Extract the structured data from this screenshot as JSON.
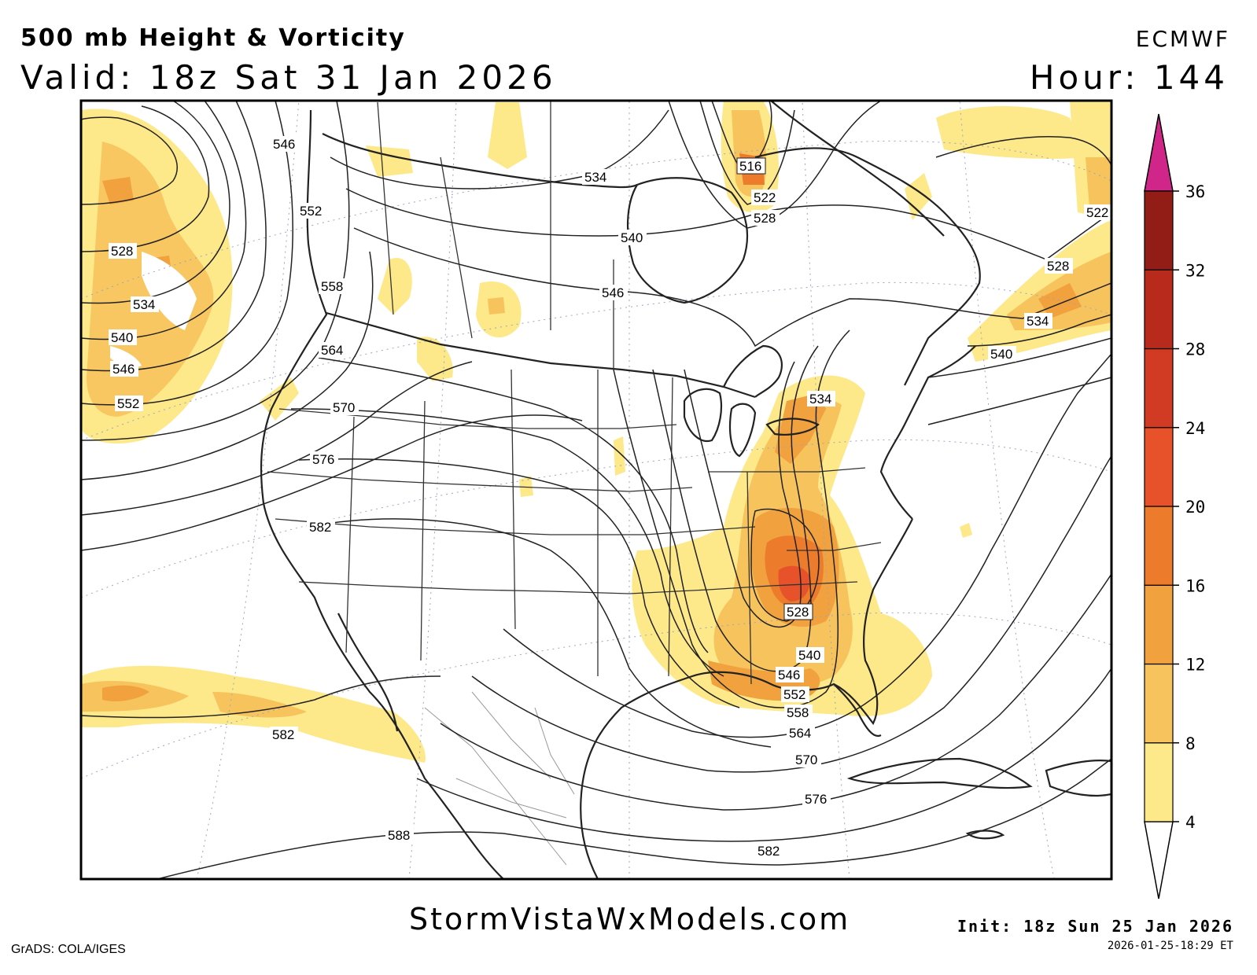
{
  "header": {
    "title_line1": "500 mb Height & Vorticity",
    "title_line2": "Valid: 18z Sat 31 Jan 2026",
    "model": "ECMWF",
    "hour": "Hour: 144"
  },
  "footer": {
    "grads": "GrADS: COLA/IGES",
    "site": "StormVistaWxModels.com",
    "init": "Init: 18z Sun 25 Jan 2026",
    "stamp": "2026-01-25-18:29 ET"
  },
  "colorbar": {
    "levels": [
      "4",
      "8",
      "12",
      "16",
      "20",
      "24",
      "28",
      "32",
      "36"
    ],
    "colors": [
      "#fde88a",
      "#f7c35c",
      "#f1a13e",
      "#ec7b2c",
      "#e7522a",
      "#d13a23",
      "#b82a1c",
      "#921d16",
      "#d0268a"
    ]
  },
  "contour_labels": [
    "516",
    "522",
    "528",
    "534",
    "540",
    "546",
    "552",
    "558",
    "564",
    "570",
    "576",
    "582",
    "588"
  ]
}
